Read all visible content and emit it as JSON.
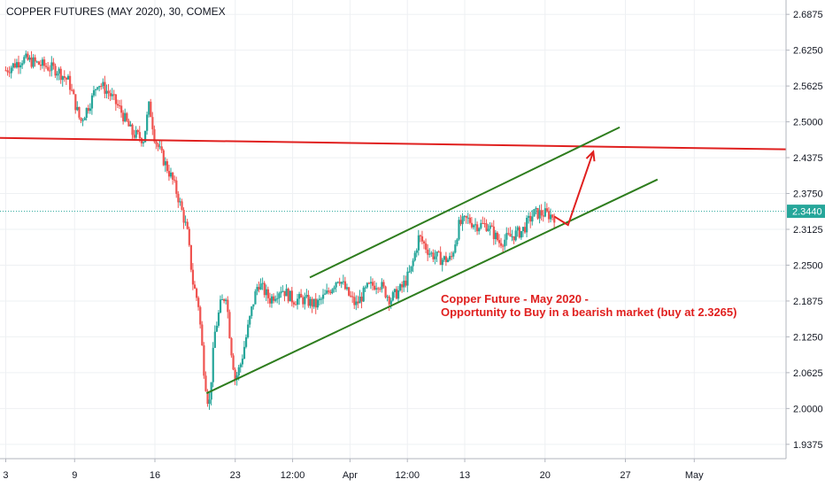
{
  "chart_data": {
    "type": "candlestick",
    "title": "COPPER FUTURES (MAY 2020), 30, COMEX",
    "y_ticks": [
      "2.6875",
      "2.6250",
      "2.5625",
      "2.5000",
      "2.4375",
      "2.3750",
      "2.3125",
      "2.2500",
      "2.1875",
      "2.1250",
      "2.0625",
      "2.0000",
      "1.9375"
    ],
    "ylim": [
      1.9125,
      2.7125
    ],
    "x_ticks": [
      {
        "label": "3",
        "t": 0
      },
      {
        "label": "9",
        "t": 6
      },
      {
        "label": "16",
        "t": 13
      },
      {
        "label": "23",
        "t": 20
      },
      {
        "label": "12:00",
        "t": 25
      },
      {
        "label": "Apr",
        "t": 30
      },
      {
        "label": "12:00",
        "t": 35
      },
      {
        "label": "13",
        "t": 40
      },
      {
        "label": "20",
        "t": 47
      },
      {
        "label": "27",
        "t": 54
      },
      {
        "label": "May",
        "t": 60
      }
    ],
    "xlim": [
      -0.5,
      68
    ],
    "last_price": "2.3440",
    "last_price_value": 2.344,
    "colors": {
      "up": "#26a69a",
      "down": "#ef5350",
      "trend": "#2e7d1e",
      "resistance": "#e0201f",
      "annotation": "#e0201f",
      "price_line": "#26a69a",
      "axis": "#787b86"
    },
    "price_path": [
      [
        0,
        2.59
      ],
      [
        1.5,
        2.61
      ],
      [
        3,
        2.6
      ],
      [
        4.5,
        2.59
      ],
      [
        5.5,
        2.57
      ],
      [
        6.5,
        2.5
      ],
      [
        7.5,
        2.54
      ],
      [
        8,
        2.57
      ],
      [
        9,
        2.55
      ],
      [
        10,
        2.52
      ],
      [
        11,
        2.48
      ],
      [
        12,
        2.47
      ],
      [
        12.5,
        2.53
      ],
      [
        13,
        2.47
      ],
      [
        13.6,
        2.44
      ],
      [
        14.5,
        2.4
      ],
      [
        15,
        2.37
      ],
      [
        15.8,
        2.31
      ],
      [
        16.3,
        2.22
      ],
      [
        16.8,
        2.18
      ],
      [
        17.3,
        2.06
      ],
      [
        17.7,
        2.0
      ],
      [
        18.2,
        2.13
      ],
      [
        18.7,
        2.18
      ],
      [
        19.2,
        2.2
      ],
      [
        19.6,
        2.11
      ],
      [
        20,
        2.05
      ],
      [
        20.5,
        2.08
      ],
      [
        21,
        2.13
      ],
      [
        21.5,
        2.18
      ],
      [
        22,
        2.22
      ],
      [
        23,
        2.19
      ],
      [
        24,
        2.21
      ],
      [
        25,
        2.19
      ],
      [
        26,
        2.19
      ],
      [
        27,
        2.18
      ],
      [
        28,
        2.2
      ],
      [
        29,
        2.23
      ],
      [
        29.8,
        2.2
      ],
      [
        30.5,
        2.18
      ],
      [
        31.5,
        2.21
      ],
      [
        32.5,
        2.22
      ],
      [
        33.5,
        2.19
      ],
      [
        34.5,
        2.21
      ],
      [
        35.3,
        2.24
      ],
      [
        36,
        2.3
      ],
      [
        37,
        2.27
      ],
      [
        38,
        2.26
      ],
      [
        38.8,
        2.26
      ],
      [
        39.5,
        2.32
      ],
      [
        40.2,
        2.33
      ],
      [
        41,
        2.32
      ],
      [
        42,
        2.32
      ],
      [
        43,
        2.29
      ],
      [
        44,
        2.3
      ],
      [
        45,
        2.31
      ],
      [
        46,
        2.34
      ],
      [
        47,
        2.34
      ],
      [
        47.8,
        2.335
      ]
    ],
    "annotation": [
      "Copper Future - May 2020 -",
      "Opportunity to Buy in a bearish market (buy at 2.3265)"
    ],
    "resistance_line": {
      "x1": -0.5,
      "y1": 2.472,
      "x2": 68,
      "y2": 2.452
    },
    "channel_upper": {
      "x1": 26.5,
      "y1": 2.2285,
      "x2": 53.5,
      "y2": 2.4905
    },
    "channel_lower": {
      "x1": 17.5,
      "y1": 2.0265,
      "x2": 56.8,
      "y2": 2.3995
    },
    "arrow_path": [
      [
        47.8,
        2.335
      ],
      [
        49,
        2.32
      ],
      [
        51.2,
        2.448
      ]
    ]
  }
}
